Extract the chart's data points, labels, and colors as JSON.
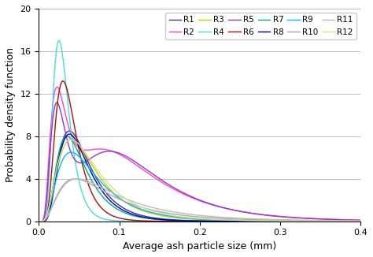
{
  "title": "",
  "xlabel": "Average ash particle size (mm)",
  "ylabel": "Probability density function",
  "xlim": [
    0,
    0.4
  ],
  "ylim": [
    0,
    20
  ],
  "yticks": [
    0,
    4,
    8,
    12,
    16,
    20
  ],
  "xticks": [
    0,
    0.1,
    0.2,
    0.3,
    0.4
  ],
  "series": [
    {
      "label": "R1",
      "color": "#3333AA",
      "peak1": 8.5,
      "mode1": 0.038,
      "sigma1": 0.52,
      "peak2": 0,
      "mode2": 0.0,
      "sigma2": 0.5
    },
    {
      "label": "R2",
      "color": "#FF44CC",
      "peak1": 12.3,
      "mode1": 0.022,
      "sigma1": 0.48,
      "peak2": 6.5,
      "mode2": 0.085,
      "sigma2": 0.55
    },
    {
      "label": "R3",
      "color": "#CCCC00",
      "peak1": 7.7,
      "mode1": 0.04,
      "sigma1": 0.58,
      "peak2": 0,
      "mode2": 0.0,
      "sigma2": 0.5
    },
    {
      "label": "R4",
      "color": "#44DDDD",
      "peak1": 17.0,
      "mode1": 0.025,
      "sigma1": 0.4,
      "peak2": 0,
      "mode2": 0.0,
      "sigma2": 0.5
    },
    {
      "label": "R5",
      "color": "#9933CC",
      "peak1": 11.0,
      "mode1": 0.022,
      "sigma1": 0.45,
      "peak2": 6.5,
      "mode2": 0.09,
      "sigma2": 0.52
    },
    {
      "label": "R6",
      "color": "#AA1100",
      "peak1": 13.2,
      "mode1": 0.03,
      "sigma1": 0.44,
      "peak2": 0,
      "mode2": 0.0,
      "sigma2": 0.5
    },
    {
      "label": "R7",
      "color": "#00AA88",
      "peak1": 8.0,
      "mode1": 0.035,
      "sigma1": 0.52,
      "peak2": 0,
      "mode2": 0.0,
      "sigma2": 0.5
    },
    {
      "label": "R8",
      "color": "#0000AA",
      "peak1": 8.2,
      "mode1": 0.038,
      "sigma1": 0.5,
      "peak2": 0,
      "mode2": 0.0,
      "sigma2": 0.5
    },
    {
      "label": "R9",
      "color": "#00BBFF",
      "peak1": 6.5,
      "mode1": 0.04,
      "sigma1": 0.62,
      "peak2": 0,
      "mode2": 0.0,
      "sigma2": 0.5
    },
    {
      "label": "R10",
      "color": "#AAAAAA",
      "peak1": 4.0,
      "mode1": 0.045,
      "sigma1": 0.7,
      "peak2": 0,
      "mode2": 0.0,
      "sigma2": 0.5
    },
    {
      "label": "R11",
      "color": "#BBBBBB",
      "peak1": 4.0,
      "mode1": 0.048,
      "sigma1": 0.72,
      "peak2": 0,
      "mode2": 0.0,
      "sigma2": 0.5
    },
    {
      "label": "R12",
      "color": "#DDDD88",
      "peak1": 7.7,
      "mode1": 0.04,
      "sigma1": 0.62,
      "peak2": 0,
      "mode2": 0.0,
      "sigma2": 0.5
    }
  ],
  "legend_ncol": 6,
  "legend_fontsize": 7.5,
  "axis_fontsize": 9,
  "tick_fontsize": 8,
  "background_color": "#ffffff",
  "grid_color": "#bbbbbb"
}
